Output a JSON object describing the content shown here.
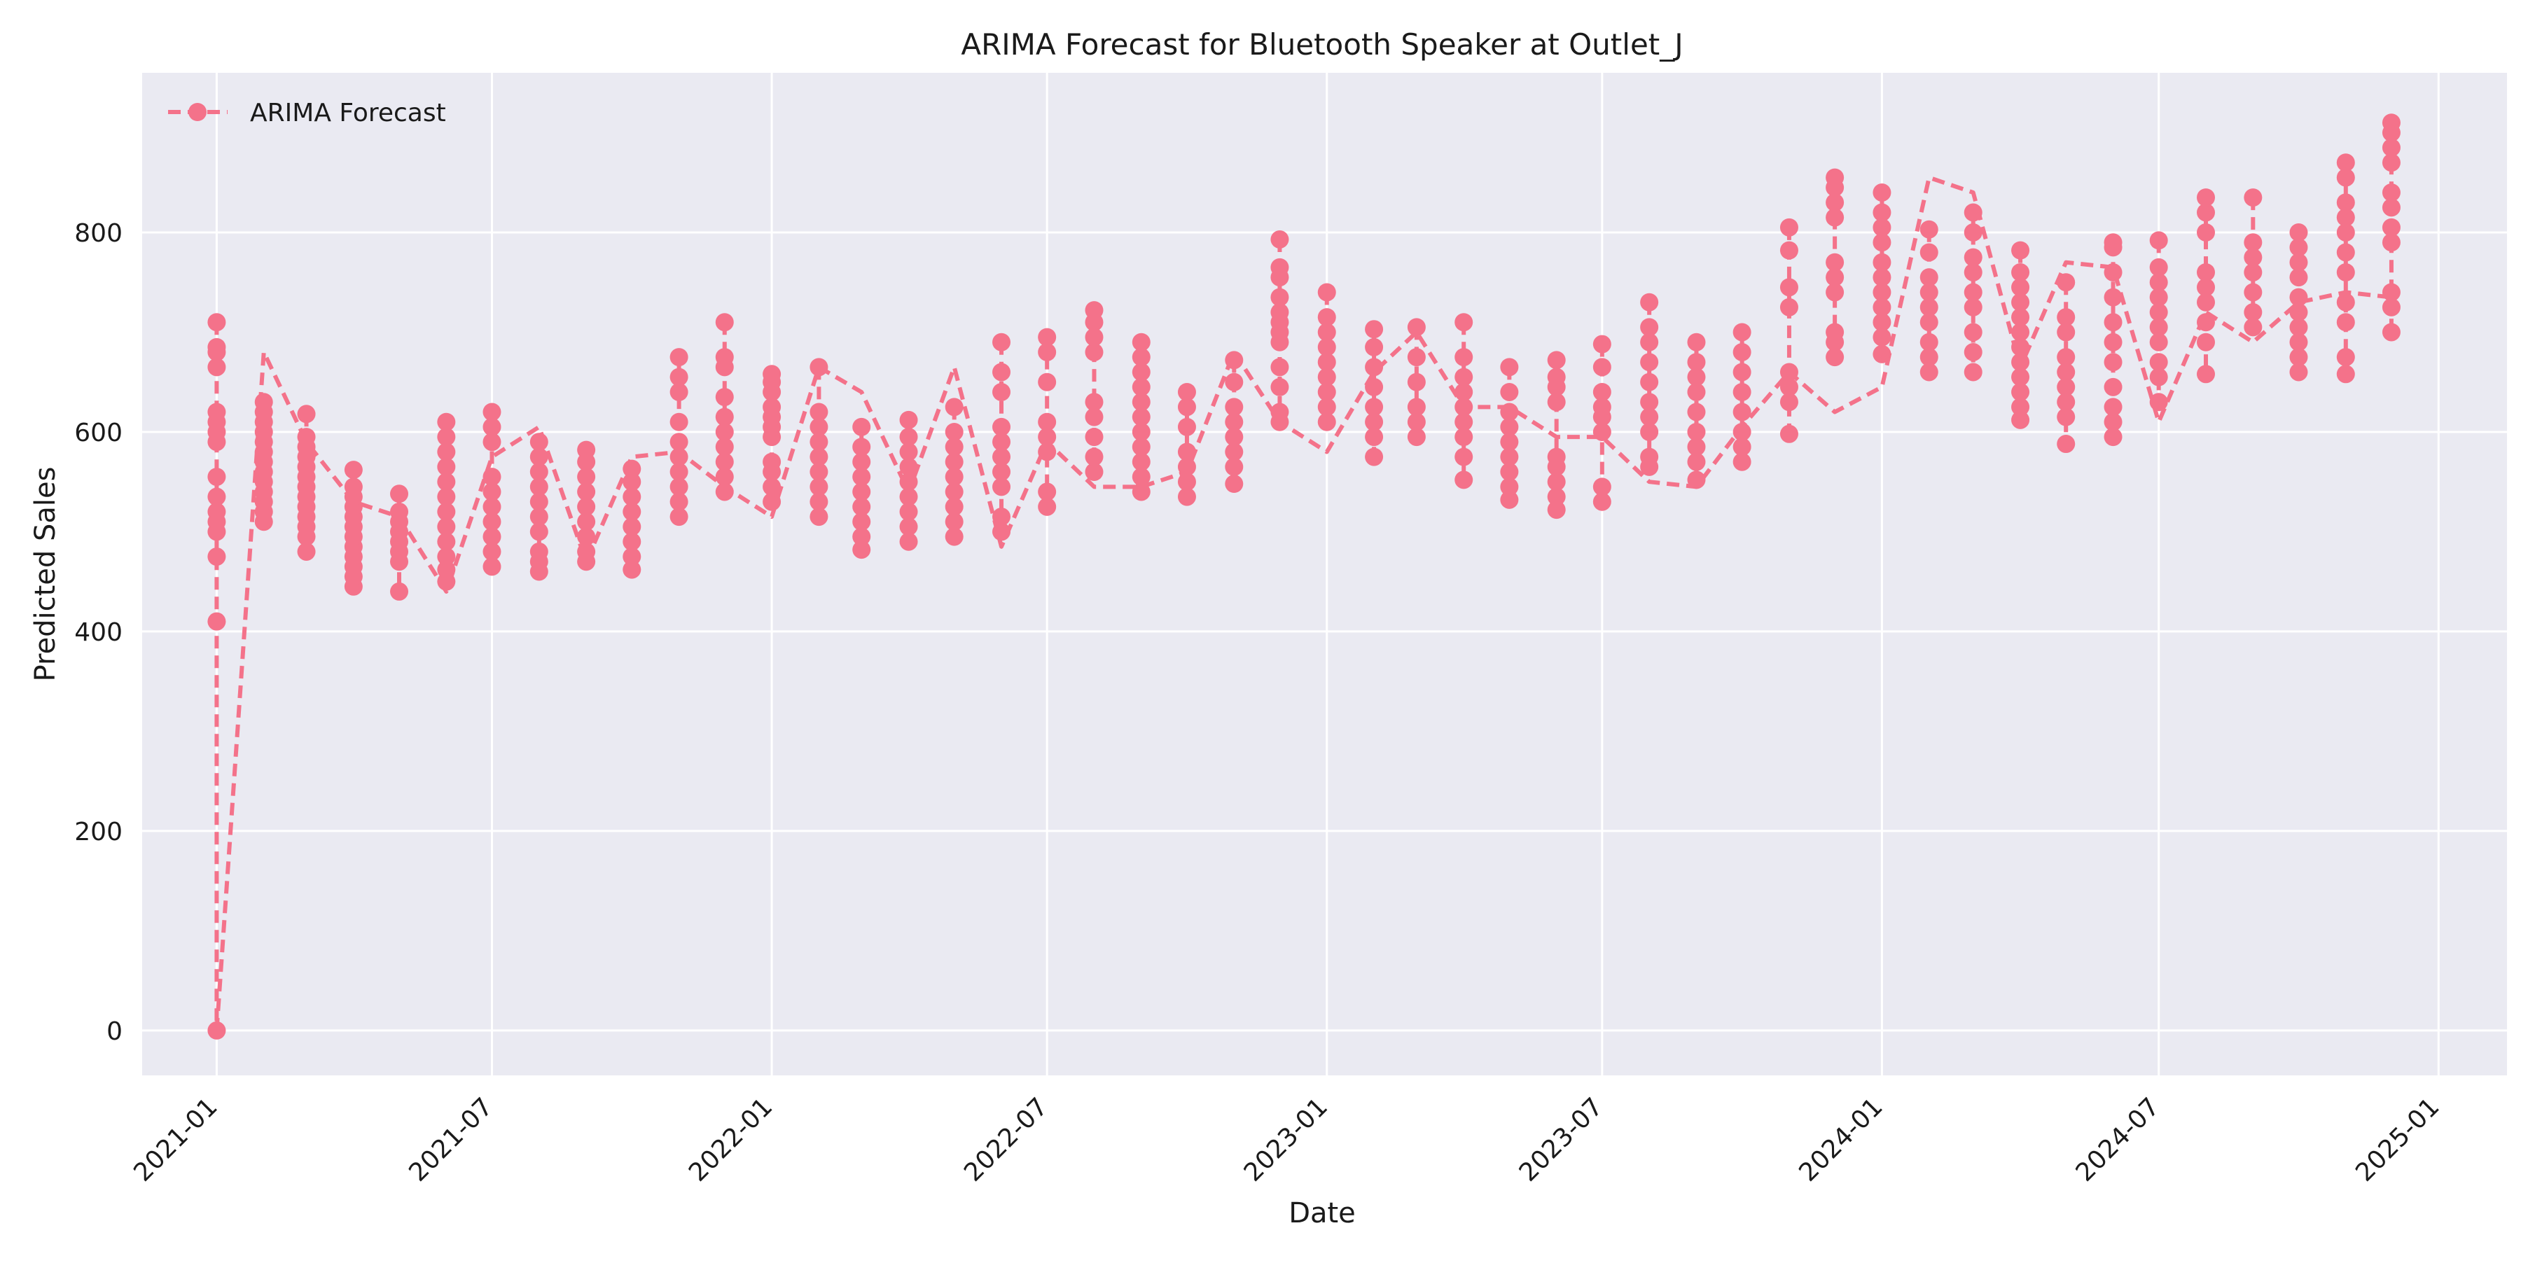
{
  "chart_data": {
    "type": "line",
    "title": "ARIMA Forecast for Bluetooth Speaker at Outlet_J",
    "xlabel": "Date",
    "ylabel": "Predicted Sales",
    "xlim": [
      "2020-11-13",
      "2025-02-15"
    ],
    "ylim": [
      -45,
      960
    ],
    "x_ticks": [
      "2021-01",
      "2021-07",
      "2022-01",
      "2022-07",
      "2023-01",
      "2023-07",
      "2024-01",
      "2024-07",
      "2025-01"
    ],
    "y_ticks": [
      0,
      200,
      400,
      600,
      800
    ],
    "grid": true,
    "legend": "upper-left",
    "style": {
      "line": "dashed",
      "marker": "circle",
      "color": "#f4728a",
      "background": "#eaeaf2",
      "grid_color": "#ffffff"
    },
    "series": [
      {
        "name": "ARIMA Forecast",
        "months": [
          {
            "date": "2021-01-01",
            "values": [
              0,
              410,
              475,
              500,
              510,
              520,
              535,
              555,
              590,
              600,
              610,
              620,
              665,
              680,
              685,
              710
            ]
          },
          {
            "date": "2021-02-01",
            "values": [
              510,
              520,
              530,
              540,
              550,
              560,
              570,
              580,
              590,
              600,
              610,
              620,
              630
            ]
          },
          {
            "date": "2021-03-01",
            "values": [
              480,
              495,
              505,
              515,
              525,
              535,
              545,
              555,
              565,
              575,
              585,
              595,
              618
            ]
          },
          {
            "date": "2021-04-01",
            "values": [
              445,
              455,
              465,
              475,
              485,
              495,
              505,
              515,
              525,
              535,
              545,
              562
            ]
          },
          {
            "date": "2021-05-01",
            "values": [
              440,
              470,
              480,
              490,
              500,
              510,
              520,
              538
            ]
          },
          {
            "date": "2021-06-01",
            "values": [
              450,
              462,
              475,
              490,
              505,
              520,
              535,
              550,
              565,
              580,
              595,
              610
            ]
          },
          {
            "date": "2021-07-01",
            "values": [
              465,
              480,
              495,
              510,
              525,
              540,
              555,
              590,
              605,
              620
            ]
          },
          {
            "date": "2021-08-01",
            "values": [
              460,
              470,
              480,
              500,
              515,
              530,
              545,
              560,
              575,
              590
            ]
          },
          {
            "date": "2021-09-01",
            "values": [
              470,
              480,
              495,
              510,
              525,
              540,
              555,
              570,
              582
            ]
          },
          {
            "date": "2021-10-01",
            "values": [
              462,
              475,
              490,
              505,
              520,
              535,
              550,
              563
            ]
          },
          {
            "date": "2021-11-01",
            "values": [
              515,
              530,
              545,
              560,
              575,
              590,
              610,
              640,
              655,
              675
            ]
          },
          {
            "date": "2021-12-01",
            "values": [
              540,
              555,
              570,
              585,
              600,
              615,
              635,
              665,
              675,
              710
            ]
          },
          {
            "date": "2022-01-01",
            "values": [
              530,
              545,
              560,
              570,
              595,
              605,
              615,
              625,
              640,
              650,
              658
            ]
          },
          {
            "date": "2022-02-01",
            "values": [
              515,
              530,
              545,
              560,
              575,
              590,
              605,
              620,
              665
            ]
          },
          {
            "date": "2022-03-01",
            "values": [
              482,
              495,
              510,
              525,
              540,
              555,
              570,
              585,
              605
            ]
          },
          {
            "date": "2022-04-01",
            "values": [
              490,
              505,
              520,
              535,
              550,
              565,
              580,
              595,
              612
            ]
          },
          {
            "date": "2022-05-01",
            "values": [
              495,
              510,
              525,
              540,
              555,
              570,
              585,
              600,
              625
            ]
          },
          {
            "date": "2022-06-01",
            "values": [
              500,
              515,
              545,
              560,
              575,
              590,
              605,
              640,
              660,
              690
            ]
          },
          {
            "date": "2022-07-01",
            "values": [
              525,
              540,
              580,
              595,
              610,
              650,
              680,
              695
            ]
          },
          {
            "date": "2022-08-01",
            "values": [
              560,
              575,
              595,
              615,
              630,
              680,
              695,
              710,
              722
            ]
          },
          {
            "date": "2022-09-01",
            "values": [
              540,
              555,
              570,
              585,
              600,
              615,
              630,
              645,
              660,
              675,
              690
            ]
          },
          {
            "date": "2022-10-01",
            "values": [
              535,
              550,
              565,
              580,
              605,
              625,
              640
            ]
          },
          {
            "date": "2022-11-01",
            "values": [
              548,
              565,
              580,
              595,
              610,
              625,
              650,
              672
            ]
          },
          {
            "date": "2022-12-01",
            "values": [
              610,
              620,
              645,
              665,
              690,
              700,
              710,
              720,
              735,
              755,
              765,
              793
            ]
          },
          {
            "date": "2023-01-01",
            "values": [
              610,
              625,
              640,
              655,
              670,
              685,
              700,
              715,
              740
            ]
          },
          {
            "date": "2023-02-01",
            "values": [
              575,
              595,
              610,
              625,
              645,
              665,
              685,
              703
            ]
          },
          {
            "date": "2023-03-01",
            "values": [
              595,
              610,
              625,
              650,
              675,
              705
            ]
          },
          {
            "date": "2023-04-01",
            "values": [
              552,
              575,
              595,
              610,
              625,
              640,
              655,
              675,
              710
            ]
          },
          {
            "date": "2023-05-01",
            "values": [
              532,
              545,
              560,
              575,
              590,
              605,
              620,
              640,
              665
            ]
          },
          {
            "date": "2023-06-01",
            "values": [
              522,
              535,
              550,
              565,
              575,
              630,
              645,
              655,
              672
            ]
          },
          {
            "date": "2023-07-01",
            "values": [
              530,
              545,
              600,
              615,
              625,
              640,
              665,
              688
            ]
          },
          {
            "date": "2023-08-01",
            "values": [
              565,
              575,
              600,
              615,
              630,
              650,
              670,
              690,
              705,
              730
            ]
          },
          {
            "date": "2023-09-01",
            "values": [
              552,
              570,
              585,
              600,
              620,
              640,
              655,
              670,
              690
            ]
          },
          {
            "date": "2023-10-01",
            "values": [
              570,
              585,
              600,
              620,
              640,
              660,
              680,
              700
            ]
          },
          {
            "date": "2023-11-01",
            "values": [
              598,
              630,
              645,
              660,
              725,
              745,
              782,
              805
            ]
          },
          {
            "date": "2023-12-01",
            "values": [
              675,
              690,
              700,
              740,
              755,
              770,
              815,
              830,
              845,
              855
            ]
          },
          {
            "date": "2024-01-01",
            "values": [
              678,
              695,
              710,
              725,
              740,
              755,
              770,
              790,
              805,
              820,
              840
            ]
          },
          {
            "date": "2024-02-01",
            "values": [
              660,
              675,
              690,
              710,
              725,
              740,
              755,
              780,
              803
            ]
          },
          {
            "date": "2024-03-01",
            "values": [
              660,
              680,
              700,
              725,
              740,
              760,
              775,
              800,
              820
            ]
          },
          {
            "date": "2024-04-01",
            "values": [
              612,
              625,
              640,
              655,
              670,
              685,
              700,
              715,
              730,
              745,
              760,
              782
            ]
          },
          {
            "date": "2024-05-01",
            "values": [
              588,
              615,
              630,
              645,
              660,
              675,
              700,
              715,
              750
            ]
          },
          {
            "date": "2024-06-01",
            "values": [
              595,
              610,
              625,
              645,
              670,
              690,
              710,
              735,
              760,
              785,
              790
            ]
          },
          {
            "date": "2024-07-01",
            "values": [
              630,
              655,
              670,
              690,
              705,
              720,
              735,
              750,
              765,
              792
            ]
          },
          {
            "date": "2024-08-01",
            "values": [
              658,
              690,
              710,
              730,
              745,
              760,
              800,
              820,
              835
            ]
          },
          {
            "date": "2024-09-01",
            "values": [
              705,
              720,
              740,
              760,
              775,
              790,
              835
            ]
          },
          {
            "date": "2024-10-01",
            "values": [
              660,
              675,
              690,
              705,
              720,
              735,
              755,
              770,
              785,
              800
            ]
          },
          {
            "date": "2024-11-01",
            "values": [
              658,
              675,
              710,
              730,
              760,
              780,
              800,
              815,
              830,
              855,
              870
            ]
          },
          {
            "date": "2024-12-01",
            "values": [
              700,
              725,
              740,
              790,
              805,
              825,
              840,
              870,
              885,
              900,
              910
            ]
          }
        ],
        "path": [
          0,
          680,
          590,
          530,
          515,
          440,
          575,
          605,
          470,
          575,
          580,
          545,
          515,
          665,
          640,
          540,
          665,
          485,
          590,
          545,
          545,
          560,
          680,
          610,
          580,
          660,
          700,
          625,
          625,
          595,
          595,
          550,
          545,
          605,
          660,
          620,
          645,
          855,
          840,
          665,
          770,
          765,
          610,
          720,
          690,
          730,
          740,
          735,
          755
        ]
      }
    ]
  }
}
